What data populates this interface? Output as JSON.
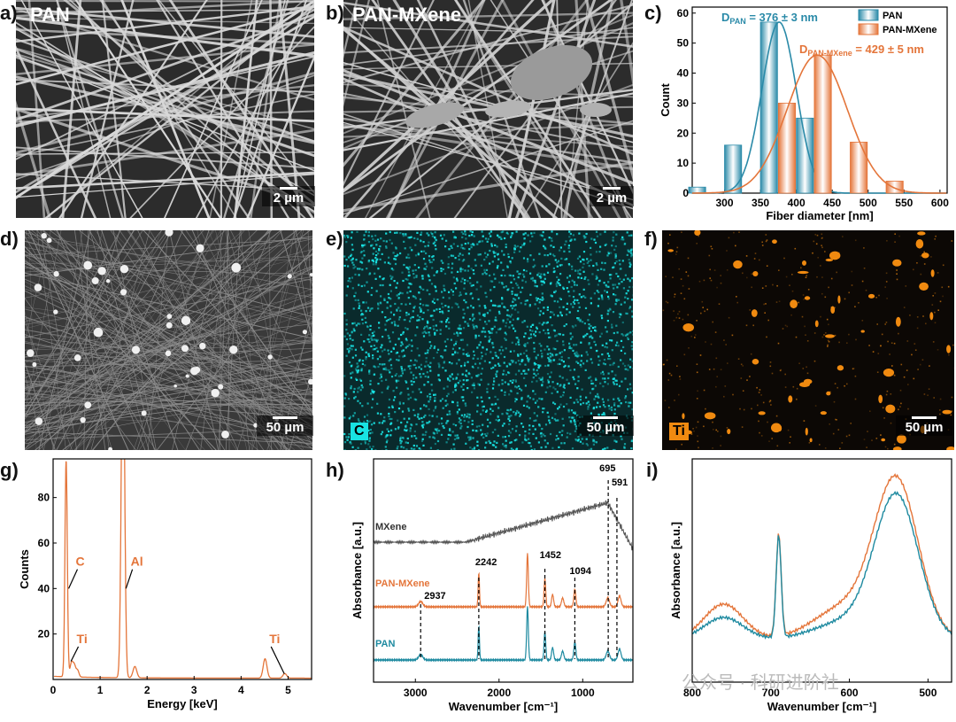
{
  "panels": {
    "a": {
      "label": "a)",
      "title": "PAN",
      "scale": "2 µm"
    },
    "b": {
      "label": "b)",
      "title": "PAN-MXene",
      "scale": "2 µm"
    },
    "c": {
      "label": "c)"
    },
    "d": {
      "label": "d)",
      "scale": "50 µm"
    },
    "e": {
      "label": "e)",
      "element": "C",
      "scale": "50 µm",
      "color": "#18e3e3"
    },
    "f": {
      "label": "f)",
      "element": "Ti",
      "scale": "50 µm",
      "color": "#f08a10"
    },
    "g": {
      "label": "g)"
    },
    "h": {
      "label": "h)"
    },
    "i": {
      "label": "i)"
    }
  },
  "watermark": "公众号 · 科研进阶社",
  "chart_data": [
    {
      "panel": "c",
      "type": "bar",
      "xlabel": "Fiber diameter [nm]",
      "ylabel": "Count",
      "xlim": [
        255,
        610
      ],
      "ylim": [
        0,
        62
      ],
      "xticks": [
        300,
        350,
        400,
        450,
        500,
        550,
        600
      ],
      "yticks": [
        0,
        10,
        20,
        30,
        40,
        50,
        60
      ],
      "series": [
        {
          "name": "PAN",
          "color": "#2a8aa8",
          "x": [
            275,
            325,
            375,
            425
          ],
          "values": [
            2,
            16,
            57,
            25
          ],
          "fit": {
            "mean": 376,
            "sd": 24,
            "peak": 57
          },
          "annotation": {
            "text": "D",
            "sub": "PAN",
            "rest": " = 376 ± 3 nm"
          }
        },
        {
          "name": "PAN-MXene",
          "color": "#e4753a",
          "x": [
            375,
            425,
            475,
            525
          ],
          "values": [
            30,
            46,
            17,
            4
          ],
          "fit": {
            "mean": 429,
            "sd": 42,
            "peak": 46
          },
          "annotation": {
            "text": "D",
            "sub": "PAN-MXene",
            "rest": " = 429 ± 5 nm"
          }
        }
      ]
    },
    {
      "panel": "g",
      "type": "line",
      "xlabel": "Energy [keV]",
      "ylabel": "Counts",
      "xlim": [
        0,
        5.5
      ],
      "ylim": [
        0,
        97
      ],
      "xticks": [
        0,
        1,
        2,
        3,
        4,
        5
      ],
      "yticks": [
        20,
        40,
        60,
        80
      ],
      "color": "#e4753a",
      "peaks": [
        {
          "x": 0.277,
          "h": 95,
          "w": 0.025
        },
        {
          "x": 0.39,
          "h": 6,
          "w": 0.03
        },
        {
          "x": 0.45,
          "h": 5,
          "w": 0.03
        },
        {
          "x": 0.52,
          "h": 3,
          "w": 0.03
        },
        {
          "x": 1.486,
          "h": 160,
          "w": 0.035
        },
        {
          "x": 1.74,
          "h": 5,
          "w": 0.04
        },
        {
          "x": 4.51,
          "h": 8.5,
          "w": 0.04
        },
        {
          "x": 4.93,
          "h": 2,
          "w": 0.04
        }
      ],
      "labels": [
        "C",
        "Al",
        "Ti",
        "Ti"
      ]
    },
    {
      "panel": "h",
      "type": "line",
      "xlabel": "Wavenumber [cm⁻¹]",
      "ylabel": "Absorbance [a.u.]",
      "xlim": [
        3500,
        400
      ],
      "xticks": [
        3000,
        2000,
        1000
      ],
      "series": [
        {
          "name": "MXene",
          "color": "#555555"
        },
        {
          "name": "PAN-MXene",
          "color": "#e4753a"
        },
        {
          "name": "PAN",
          "color": "#1e8aa0"
        }
      ],
      "marked_peaks": [
        2937,
        2242,
        1452,
        1094,
        695,
        591
      ]
    },
    {
      "panel": "i",
      "type": "line",
      "xlabel": "Wavenumber [cm⁻¹]",
      "ylabel": "Absorbance [a.u.]",
      "xlim": [
        800,
        470
      ],
      "xticks": [
        800,
        700,
        600,
        500
      ],
      "series": [
        {
          "name": "PAN-MXene",
          "color": "#e4753a"
        },
        {
          "name": "PAN",
          "color": "#1e8aa0"
        }
      ]
    }
  ]
}
